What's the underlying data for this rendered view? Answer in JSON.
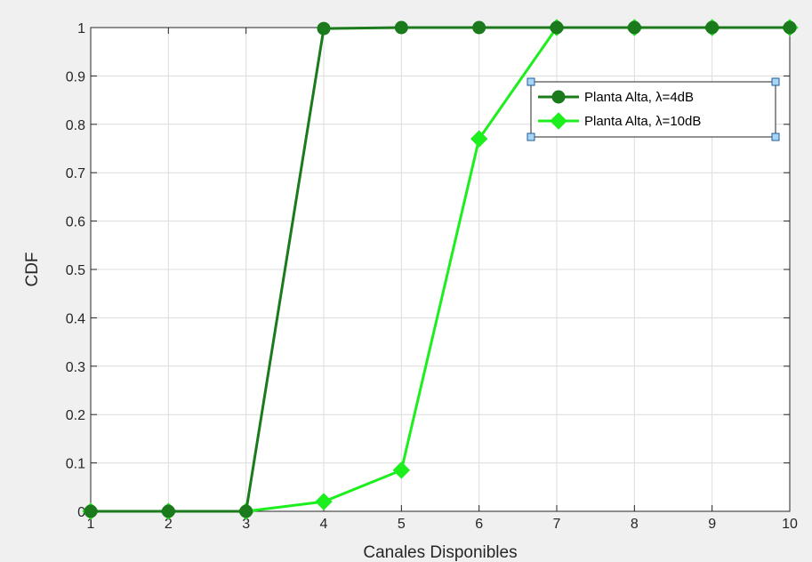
{
  "colors": {
    "figure_bg": "#f0f0f0",
    "axes_bg": "#ffffff",
    "grid": "#dcdcdc",
    "axis": "#262626",
    "series_dark": "#1b7a1b",
    "series_bright": "#1dee1d",
    "selection_handle": "#a9d4f5"
  },
  "chart_data": {
    "type": "line",
    "title": "",
    "xlabel": "Canales Disponibles",
    "ylabel": "CDF",
    "xlim": [
      1,
      10
    ],
    "ylim": [
      0,
      1
    ],
    "xticks": [
      "1",
      "2",
      "3",
      "4",
      "5",
      "6",
      "7",
      "8",
      "9",
      "10"
    ],
    "yticks": [
      "0",
      "0.1",
      "0.2",
      "0.3",
      "0.4",
      "0.5",
      "0.6",
      "0.7",
      "0.8",
      "0.9",
      "1"
    ],
    "grid": true,
    "legend_position": "top-right",
    "legend_selected": true,
    "series": [
      {
        "name": "Planta Alta, λ=4dB",
        "marker": "circle",
        "color": "#1b7a1b",
        "x": [
          1,
          2,
          3,
          4,
          5,
          6,
          7,
          8,
          9,
          10
        ],
        "y": [
          0,
          0,
          0,
          0.998,
          1,
          1,
          1,
          1,
          1,
          1
        ]
      },
      {
        "name": "Planta Alta, λ=10dB",
        "marker": "diamond",
        "color": "#1dee1d",
        "x": [
          1,
          2,
          3,
          4,
          5,
          6,
          7,
          8,
          9,
          10
        ],
        "y": [
          0,
          0,
          0,
          0.02,
          0.085,
          0.77,
          1,
          1,
          1,
          1
        ]
      }
    ]
  }
}
